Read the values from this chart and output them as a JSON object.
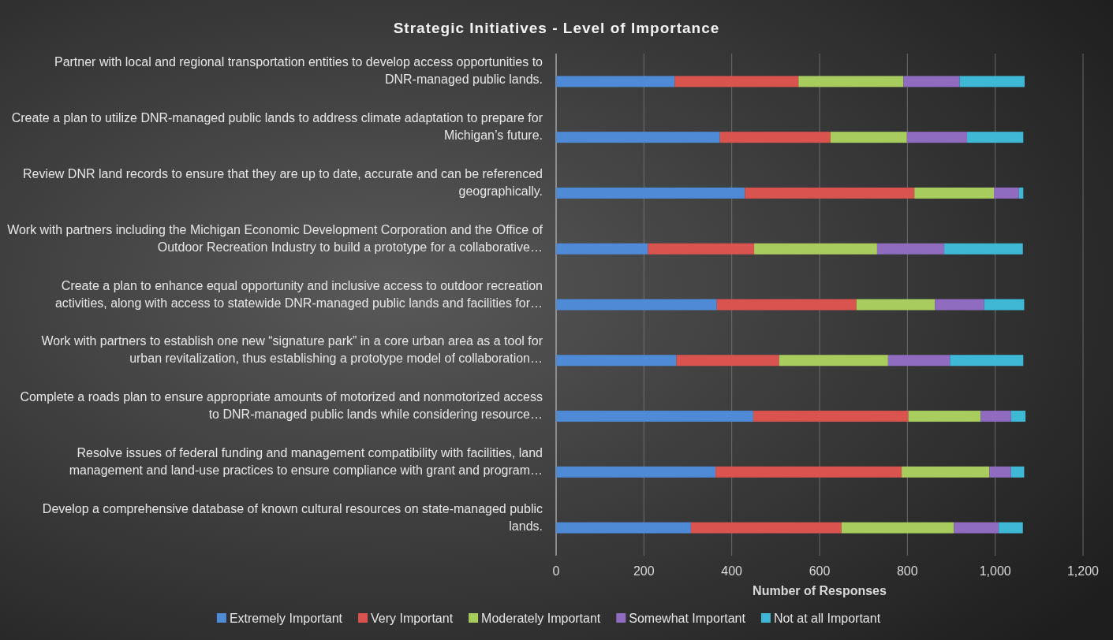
{
  "chart_data": {
    "type": "bar",
    "orientation": "horizontal",
    "stacked": true,
    "title": "Strategic Initiatives - Level of Importance",
    "xlabel": "Number of Responses",
    "categories": [
      "Partner with local and regional transportation entities to develop access opportunities to DNR-managed public lands.",
      "Create a plan to utilize DNR-managed public lands to address climate adaptation to prepare for Michigan’s future.",
      "Review DNR land records to ensure that they are up to date, accurate and can be referenced geographically.",
      "Work with partners including the Michigan Economic Development Corporation and the Office of Outdoor Recreation Industry to build a prototype for a collaborative…",
      "Create a plan to enhance equal opportunity and inclusive access to outdoor recreation activities, along with access to statewide DNR-managed public lands and facilities for…",
      "Work with partners to establish one new “signature park” in a core urban area as a tool for urban revitalization, thus establishing a prototype model of collaboration…",
      "Complete a roads plan to ensure appropriate amounts of motorized and nonmotorized access to DNR-managed public lands while considering resource…",
      "Resolve issues of federal funding and management compatibility with facilities, land management and land-use practices to ensure compliance with grant and program…",
      "Develop a comprehensive database of known cultural resources on state-managed public lands."
    ],
    "series": [
      {
        "name": "Extremely Important",
        "color": "#4f8ad6",
        "values": [
          270,
          373,
          430,
          209,
          366,
          274,
          449,
          363,
          307
        ]
      },
      {
        "name": "Very Important",
        "color": "#d9534f",
        "values": [
          282,
          252,
          386,
          242,
          318,
          234,
          353,
          424,
          343
        ]
      },
      {
        "name": "Moderately Important",
        "color": "#a8cc5e",
        "values": [
          239,
          174,
          181,
          280,
          179,
          248,
          165,
          200,
          256
        ]
      },
      {
        "name": "Somewhat Important",
        "color": "#8f6cc0",
        "values": [
          128,
          137,
          57,
          153,
          112,
          141,
          69,
          49,
          102
        ]
      },
      {
        "name": "Not at all Important",
        "color": "#3fb8d6",
        "values": [
          148,
          128,
          10,
          179,
          91,
          167,
          33,
          30,
          55
        ]
      }
    ],
    "xlim": [
      0,
      1200
    ],
    "xticks": [
      0,
      200,
      400,
      600,
      800,
      {
        "value": 1000,
        "label": "1,000"
      },
      {
        "value": 1200,
        "label": "1,200"
      }
    ],
    "grid": "x",
    "legend": "bottom"
  }
}
